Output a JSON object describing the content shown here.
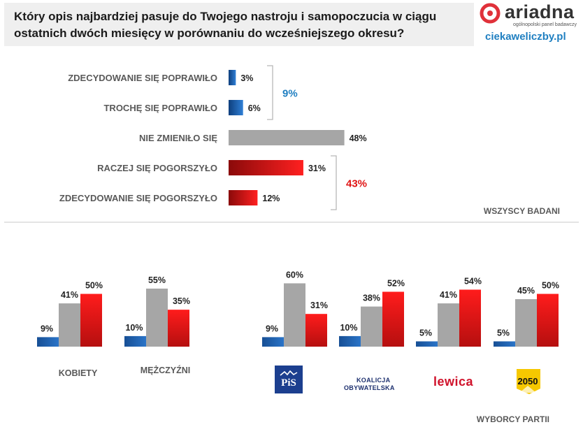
{
  "title": {
    "line1": "Który opis najbardziej pasuje do Twojego nastroju i samopoczucia w ciągu",
    "line2": "ostatnich dwóch miesięcy w porównaniu do wcześniejszego okresu?"
  },
  "brand": {
    "name": "ariadna",
    "subtitle": "ogólnopolski panel badawczy",
    "website": "ciekaweliczby.pl"
  },
  "colors": {
    "blue": "#1b62b0",
    "gray": "#a6a6a6",
    "red": "#e01414",
    "label_gray": "#595959",
    "blue_total": "#1f7fc1",
    "red_total": "#e01414"
  },
  "chart_data": [
    {
      "type": "bar",
      "orientation": "horizontal",
      "categories": [
        "ZDECYDOWANIE SIĘ POPRAWIŁO",
        "TROCHĘ SIĘ POPRAWIŁO",
        "NIE ZMIENIŁO SIĘ",
        "RACZEJ SIĘ POGORSZYŁO",
        "ZDECYDOWANIE  SIĘ POGORSZYŁO"
      ],
      "values": [
        3,
        6,
        48,
        31,
        12
      ],
      "labels": [
        "3%",
        "6%",
        "48%",
        "31%",
        "12%"
      ],
      "groups": [
        {
          "label": "9%",
          "members": [
            0,
            1
          ]
        },
        {
          "label": "43%",
          "members": [
            3,
            4
          ]
        }
      ],
      "caption": "WSZYSCY BADANI"
    },
    {
      "type": "bar",
      "categories": [
        "KOBIETY",
        "MĘŻCZYŹNI"
      ],
      "series": [
        {
          "values": [
            9,
            10
          ],
          "labels": [
            "9%",
            "10%"
          ]
        },
        {
          "values": [
            41,
            55
          ],
          "labels": [
            "41%",
            "55%"
          ]
        },
        {
          "values": [
            50,
            35
          ],
          "labels": [
            "50%",
            "35%"
          ]
        }
      ]
    },
    {
      "type": "bar",
      "categories": [
        "PiS",
        "KOALICJA OBYWATELSKA",
        "Lewica",
        "2050"
      ],
      "series": [
        {
          "values": [
            9,
            10,
            5,
            5
          ],
          "labels": [
            "9%",
            "10%",
            "5%",
            "5%"
          ]
        },
        {
          "values": [
            60,
            38,
            41,
            45
          ],
          "labels": [
            "60%",
            "38%",
            "41%",
            "45%"
          ]
        },
        {
          "values": [
            31,
            52,
            54,
            50
          ],
          "labels": [
            "31%",
            "52%",
            "54%",
            "50%"
          ]
        }
      ],
      "caption": "WYBORCY PARTII"
    }
  ],
  "logos": {
    "pis": "PiS",
    "ko_line1": "KOALICJA",
    "ko_line2": "OBYWATELSKA",
    "lewica": "lewica",
    "p2050": "2050"
  }
}
